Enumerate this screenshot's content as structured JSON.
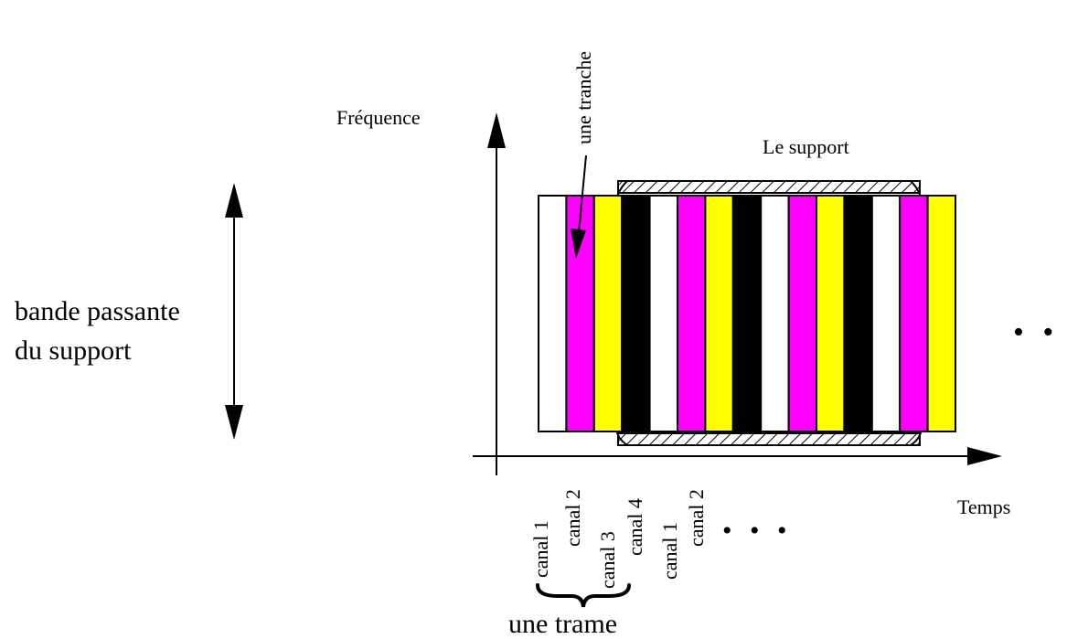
{
  "labels": {
    "frequency_axis": "Fréquence",
    "time_axis": "Temps",
    "medium": "Le support",
    "slice": "une tranche",
    "bandwidth_line1": "bande passante",
    "bandwidth_line2": "du support",
    "frame": "une trame",
    "ellipsis": "• • •"
  },
  "channel_labels": [
    "canal 1",
    "canal 2",
    "canal 3",
    "canal 4",
    "canal 1",
    "canal 2"
  ],
  "slot_colors": [
    "#ffffff",
    "#ff00ff",
    "#ffff00",
    "#000000",
    "#ffffff",
    "#ff00ff",
    "#ffff00",
    "#000000",
    "#ffffff",
    "#ff00ff",
    "#ffff00",
    "#000000",
    "#ffffff",
    "#ff00ff",
    "#ffff00"
  ],
  "colors": {
    "canal1": "#ffffff",
    "canal2": "#ff00ff",
    "canal3": "#ffff00",
    "canal4": "#000000",
    "stroke": "#000000"
  }
}
